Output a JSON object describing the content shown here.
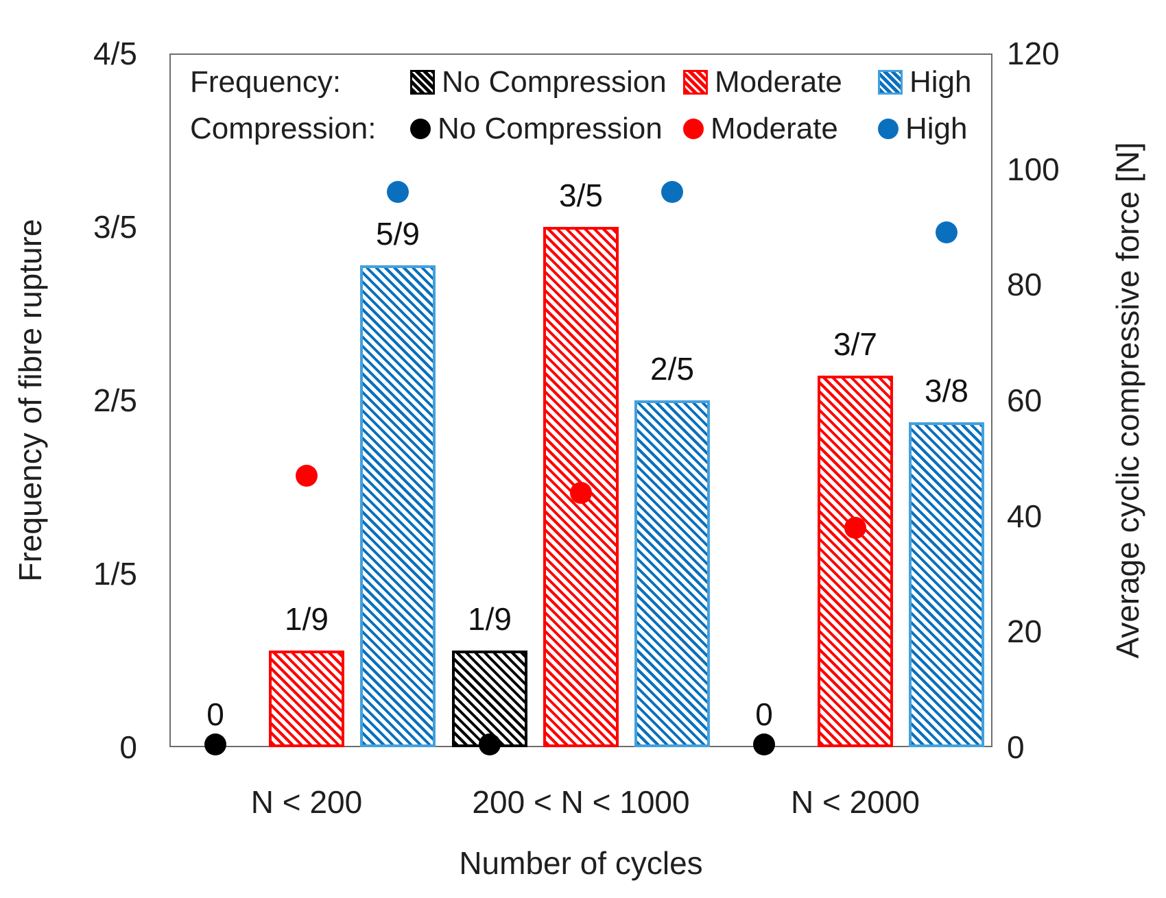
{
  "chart_data": {
    "type": "bar",
    "subtype": "grouped-bars-with-scatter-dual-axis",
    "categories": [
      "N < 200",
      "200 < N < 1000",
      "N < 2000"
    ],
    "bar_series": [
      {
        "name": "No Compression",
        "color": "#000000",
        "border_color": "#000000",
        "values": [
          0,
          0.1111,
          0
        ],
        "value_labels": [
          "0",
          "1/9",
          "0"
        ]
      },
      {
        "name": "Moderate",
        "color": "#ff0000",
        "border_color": "#ff0000",
        "values": [
          0.1111,
          0.6,
          0.4286
        ],
        "value_labels": [
          "1/9",
          "3/5",
          "3/7"
        ]
      },
      {
        "name": "High",
        "color": "#0a70bd",
        "border_color": "#44a0dc",
        "values": [
          0.5556,
          0.4,
          0.375
        ],
        "value_labels": [
          "5/9",
          "2/5",
          "3/8"
        ]
      }
    ],
    "scatter_series": [
      {
        "name": "No Compression",
        "color": "#000000",
        "values_N": [
          0,
          0,
          0
        ]
      },
      {
        "name": "Moderate",
        "color": "#ff0000",
        "values_N": [
          47,
          44,
          38
        ]
      },
      {
        "name": "High",
        "color": "#0a70bd",
        "values_N": [
          96,
          96,
          89
        ]
      }
    ],
    "left_axis": {
      "label": "Frequency of fibre rupture",
      "tick_labels": [
        "4/5",
        "3/5",
        "2/5",
        "1/5",
        "0"
      ],
      "tick_values": [
        0.8,
        0.6,
        0.4,
        0.2,
        0
      ],
      "max": 0.8
    },
    "right_axis": {
      "label": "Average cyclic compressive force [N]",
      "tick_labels": [
        "120",
        "100",
        "80",
        "60",
        "40",
        "20",
        "0"
      ],
      "tick_values": [
        120,
        100,
        80,
        60,
        40,
        20,
        0
      ],
      "max": 120
    },
    "x_axis": {
      "label": "Number of cycles"
    },
    "legend": {
      "rows": [
        {
          "caption": "Frequency:",
          "swatch": "square",
          "items": [
            "No Compression",
            "Moderate",
            "High"
          ]
        },
        {
          "caption": "Compression:",
          "swatch": "circle",
          "items": [
            "No Compression",
            "Moderate",
            "High"
          ]
        }
      ],
      "item_colors": [
        "#000000",
        "#ff0000",
        "#0a70bd"
      ],
      "square_border_colors": [
        "#000000",
        "#ff0000",
        "#44a0dc"
      ]
    },
    "layout_hints": {
      "grid": "off",
      "legend_position": "inside-top",
      "hatch_direction": "backslash"
    }
  }
}
